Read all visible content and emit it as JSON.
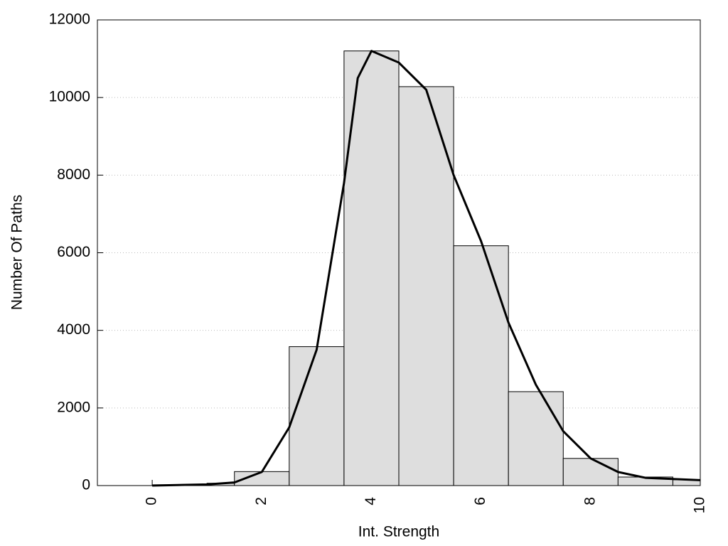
{
  "chart_data": {
    "type": "histogram",
    "xlabel": "Int. Strength",
    "ylabel": "Number Of Paths",
    "bins": [
      0,
      1,
      1.5,
      2.5,
      3.5,
      4.5,
      5.5,
      6.5,
      7.5,
      8.5,
      9.5,
      10
    ],
    "counts": [
      20,
      60,
      360,
      3580,
      11200,
      10280,
      6180,
      2420,
      700,
      220,
      150
    ],
    "color": "#dedede",
    "curve": {
      "x": [
        0,
        1,
        1.5,
        2,
        2.5,
        3,
        3.5,
        3.75,
        4,
        4.5,
        5,
        5.5,
        6,
        6.5,
        7,
        7.5,
        8,
        8.5,
        9,
        9.5,
        10
      ],
      "values": [
        0,
        30,
        80,
        350,
        1500,
        3500,
        7800,
        10500,
        11200,
        10900,
        10200,
        8000,
        6300,
        4200,
        2600,
        1400,
        700,
        350,
        200,
        170,
        140
      ],
      "color": "#000000"
    },
    "xlim": [
      -1,
      10
    ],
    "xticks": [
      0,
      2,
      4,
      6,
      8,
      10
    ],
    "ylim": [
      0,
      12000
    ],
    "yticks": [
      0,
      2000,
      4000,
      6000,
      8000,
      10000,
      12000
    ],
    "grid": true
  }
}
